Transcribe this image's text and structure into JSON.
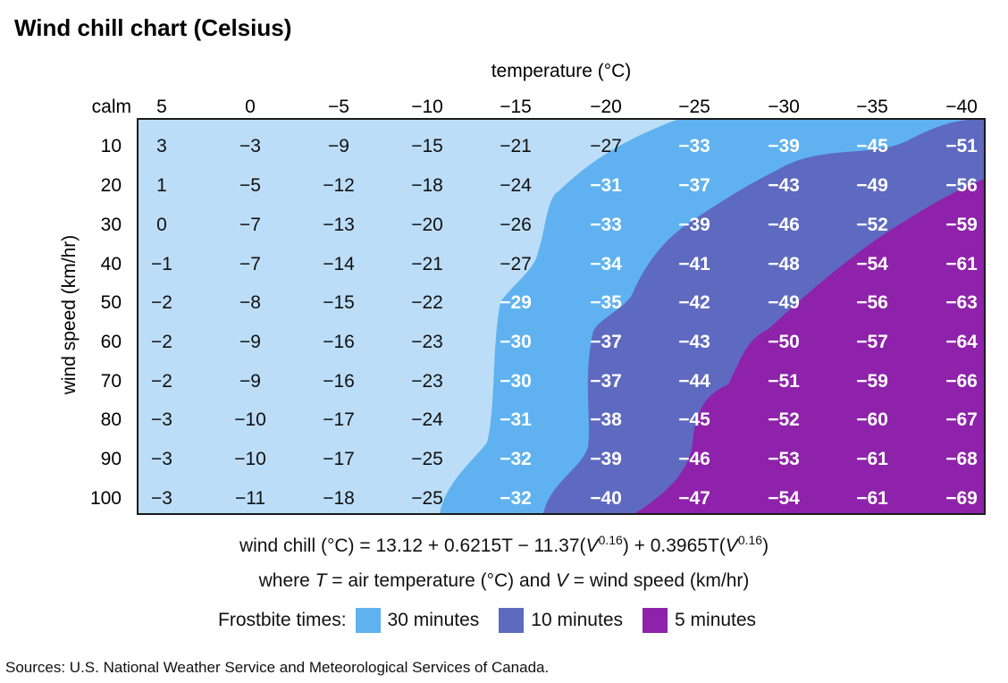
{
  "chart_data": {
    "type": "table",
    "title": "Wind chill chart (Celsius)",
    "xlabel": "temperature (°C)",
    "ylabel": "wind speed (km/hr)",
    "corner_label": "calm",
    "temperatures": [
      "5",
      "0",
      "−5",
      "−10",
      "−15",
      "−20",
      "−25",
      "−30",
      "−35",
      "−40"
    ],
    "wind_speeds": [
      "10",
      "20",
      "30",
      "40",
      "50",
      "60",
      "70",
      "80",
      "90",
      "100"
    ],
    "values": [
      [
        "3",
        "−3",
        "−9",
        "−15",
        "−21",
        "−27",
        "−33",
        "−39",
        "−45",
        "−51"
      ],
      [
        "1",
        "−5",
        "−12",
        "−18",
        "−24",
        "−31",
        "−37",
        "−43",
        "−49",
        "−56"
      ],
      [
        "0",
        "−7",
        "−13",
        "−20",
        "−26",
        "−33",
        "−39",
        "−46",
        "−52",
        "−59"
      ],
      [
        "−1",
        "−7",
        "−14",
        "−21",
        "−27",
        "−34",
        "−41",
        "−48",
        "−54",
        "−61"
      ],
      [
        "−2",
        "−8",
        "−15",
        "−22",
        "−29",
        "−35",
        "−42",
        "−49",
        "−56",
        "−63"
      ],
      [
        "−2",
        "−9",
        "−16",
        "−23",
        "−30",
        "−37",
        "−43",
        "−50",
        "−57",
        "−64"
      ],
      [
        "−2",
        "−9",
        "−16",
        "−23",
        "−30",
        "−37",
        "−44",
        "−51",
        "−59",
        "−66"
      ],
      [
        "−3",
        "−10",
        "−17",
        "−24",
        "−31",
        "−38",
        "−45",
        "−52",
        "−60",
        "−67"
      ],
      [
        "−3",
        "−10",
        "−17",
        "−25",
        "−32",
        "−39",
        "−46",
        "−53",
        "−61",
        "−68"
      ],
      [
        "−3",
        "−11",
        "−18",
        "−25",
        "−32",
        "−40",
        "−47",
        "−54",
        "−61",
        "−69"
      ]
    ],
    "zones": [
      {
        "label": "30 minutes",
        "color": "#5fb2ef"
      },
      {
        "label": "10 minutes",
        "color": "#5e6ac0"
      },
      {
        "label": "5 minutes",
        "color": "#8e22aa"
      }
    ],
    "base_color": "#bcddf7"
  },
  "formula": {
    "line1": "wind chill (°C) = 13.12 + 0.6215T − 11.37(V^0.16) + 0.3965T(V^0.16)",
    "line2": "where T = air temperature (°C) and V = wind speed (km/hr)"
  },
  "legend": {
    "label": "Frostbite times:"
  },
  "source": "Sources: U.S. National Weather Service and Meteorological Services of Canada."
}
